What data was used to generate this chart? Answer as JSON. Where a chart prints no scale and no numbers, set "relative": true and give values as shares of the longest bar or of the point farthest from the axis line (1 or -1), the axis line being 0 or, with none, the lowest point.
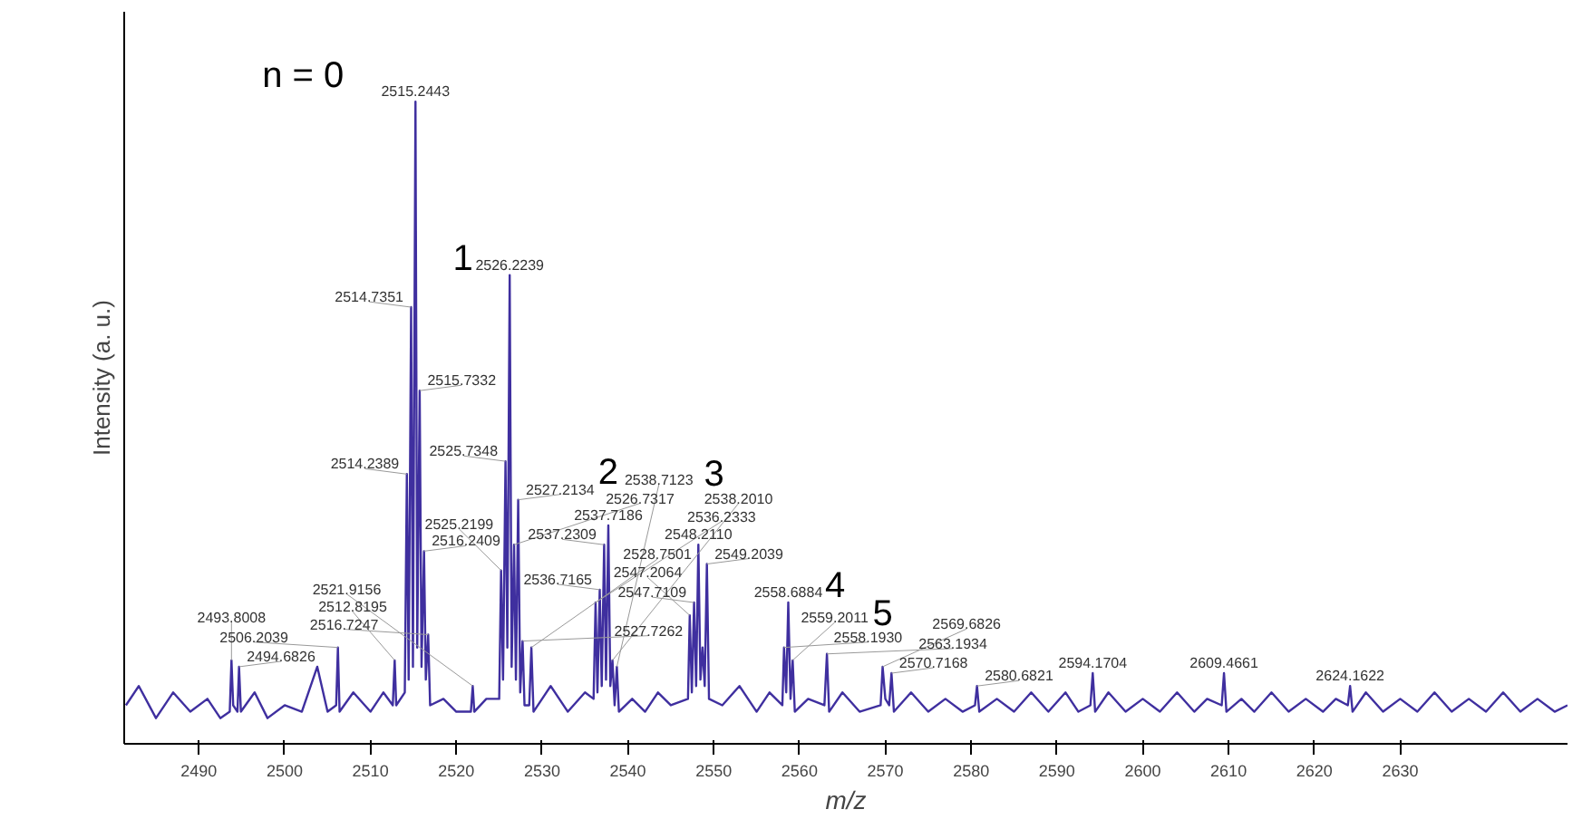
{
  "chart_data": {
    "type": "line",
    "xlabel": "m/z",
    "ylabel": "Intensity (a. u.)",
    "relative": true,
    "xlim": [
      2481.3,
      2649.5
    ],
    "xticks": [
      2490,
      2500,
      2510,
      2520,
      2530,
      2540,
      2550,
      2560,
      2570,
      2580,
      2590,
      2600,
      2610,
      2620,
      2630
    ],
    "x": [
      2481.5,
      2483,
      2485,
      2487,
      2489,
      2491,
      2492.5,
      2493.6,
      2493.8008,
      2494.0,
      2494.5,
      2494.6826,
      2494.9,
      2496.5,
      2498,
      2500,
      2502,
      2503.8,
      2505,
      2506.0,
      2506.2039,
      2506.4,
      2508,
      2510,
      2511.5,
      2512.6,
      2512.8195,
      2513.0,
      2514.0,
      2514.2389,
      2514.45,
      2514.7351,
      2514.95,
      2515.2443,
      2515.45,
      2515.7332,
      2515.95,
      2516.2409,
      2516.45,
      2516.7247,
      2516.95,
      2518.5,
      2520,
      2521.7,
      2521.9156,
      2522.1,
      2523.5,
      2525.0,
      2525.2199,
      2525.45,
      2525.7348,
      2525.95,
      2526.2239,
      2526.45,
      2526.7317,
      2526.95,
      2527.2134,
      2527.45,
      2527.7262,
      2527.95,
      2528.5,
      2528.7501,
      2529.0,
      2531,
      2533,
      2535,
      2536.0,
      2536.2333,
      2536.45,
      2536.7165,
      2536.95,
      2537.2309,
      2537.45,
      2537.7186,
      2537.95,
      2538.201,
      2538.45,
      2538.7123,
      2538.95,
      2540.5,
      2542,
      2543.5,
      2545,
      2547.0,
      2547.2064,
      2547.45,
      2547.7109,
      2547.95,
      2548.211,
      2548.45,
      2548.7,
      2548.95,
      2549.2039,
      2549.45,
      2551,
      2553,
      2555,
      2556.5,
      2558.0,
      2558.193,
      2558.45,
      2558.6884,
      2558.95,
      2559.2011,
      2559.45,
      2561,
      2562.9,
      2563.1934,
      2563.45,
      2565,
      2567,
      2569.45,
      2569.6826,
      2570,
      2570.45,
      2570.7168,
      2571,
      2573,
      2575,
      2577,
      2579,
      2580.45,
      2580.6821,
      2580.95,
      2583,
      2585,
      2587,
      2589,
      2591,
      2592.5,
      2593.9,
      2594.1704,
      2594.45,
      2596,
      2598,
      2600,
      2602,
      2604,
      2606,
      2607.5,
      2609.2,
      2609.4661,
      2609.75,
      2611.5,
      2613,
      2615,
      2617,
      2619,
      2621,
      2622.5,
      2623.9,
      2624.1622,
      2624.45,
      2626,
      2628,
      2630,
      2632,
      2634,
      2636,
      2638,
      2640,
      2642,
      2644,
      2646,
      2648,
      2649.5
    ],
    "series": [
      {
        "color": "#3f2f9f",
        "values": [
          0.06,
          0.09,
          0.04,
          0.08,
          0.05,
          0.07,
          0.04,
          0.05,
          0.13,
          0.06,
          0.05,
          0.12,
          0.05,
          0.08,
          0.04,
          0.06,
          0.05,
          0.12,
          0.05,
          0.06,
          0.15,
          0.05,
          0.08,
          0.05,
          0.08,
          0.06,
          0.13,
          0.06,
          0.08,
          0.42,
          0.1,
          0.68,
          0.12,
          1,
          0.15,
          0.55,
          0.12,
          0.3,
          0.1,
          0.17,
          0.06,
          0.07,
          0.05,
          0.05,
          0.09,
          0.05,
          0.07,
          0.07,
          0.27,
          0.1,
          0.44,
          0.15,
          0.73,
          0.12,
          0.31,
          0.1,
          0.38,
          0.08,
          0.16,
          0.06,
          0.06,
          0.15,
          0.05,
          0.09,
          0.05,
          0.08,
          0.07,
          0.22,
          0.08,
          0.24,
          0.09,
          0.31,
          0.1,
          0.34,
          0.09,
          0.13,
          0.06,
          0.12,
          0.05,
          0.07,
          0.05,
          0.08,
          0.06,
          0.07,
          0.2,
          0.08,
          0.22,
          0.09,
          0.31,
          0.1,
          0.15,
          0.09,
          0.28,
          0.07,
          0.06,
          0.09,
          0.05,
          0.08,
          0.06,
          0.15,
          0.08,
          0.22,
          0.07,
          0.13,
          0.05,
          0.07,
          0.06,
          0.14,
          0.05,
          0.08,
          0.05,
          0.06,
          0.12,
          0.07,
          0.06,
          0.11,
          0.05,
          0.08,
          0.05,
          0.07,
          0.05,
          0.06,
          0.09,
          0.05,
          0.07,
          0.05,
          0.08,
          0.05,
          0.08,
          0.05,
          0.06,
          0.11,
          0.05,
          0.08,
          0.05,
          0.07,
          0.05,
          0.08,
          0.05,
          0.07,
          0.06,
          0.11,
          0.05,
          0.07,
          0.05,
          0.08,
          0.05,
          0.07,
          0.05,
          0.07,
          0.06,
          0.09,
          0.05,
          0.08,
          0.05,
          0.07,
          0.05,
          0.08,
          0.05,
          0.07,
          0.05,
          0.08,
          0.05,
          0.07,
          0.05,
          0.06
        ]
      }
    ],
    "annotations": [
      {
        "text": "2515.2443",
        "x": 2515.2443,
        "y": 1
      },
      {
        "text": "2526.2239",
        "x": 2526.2239,
        "y": 0.73
      },
      {
        "text": "2514.7351",
        "x": 2514.7351,
        "y": 0.68
      },
      {
        "text": "2515.7332",
        "x": 2515.7332,
        "y": 0.55
      },
      {
        "text": "2525.7348",
        "x": 2525.7348,
        "y": 0.44
      },
      {
        "text": "2514.2389",
        "x": 2514.2389,
        "y": 0.42
      },
      {
        "text": "2527.2134",
        "x": 2527.2134,
        "y": 0.38
      },
      {
        "text": "2537.7186",
        "x": 2537.7186,
        "y": 0.34
      },
      {
        "text": "2526.7317",
        "x": 2526.7317,
        "y": 0.31
      },
      {
        "text": "2537.2309",
        "x": 2537.2309,
        "y": 0.31
      },
      {
        "text": "2548.2110",
        "x": 2548.211,
        "y": 0.31
      },
      {
        "text": "2516.2409",
        "x": 2516.2409,
        "y": 0.3
      },
      {
        "text": "2549.2039",
        "x": 2549.2039,
        "y": 0.28
      },
      {
        "text": "2525.2199",
        "x": 2525.2199,
        "y": 0.27
      },
      {
        "text": "2536.7165",
        "x": 2536.7165,
        "y": 0.24
      },
      {
        "text": "2536.2333",
        "x": 2536.2333,
        "y": 0.22
      },
      {
        "text": "2547.7109",
        "x": 2547.7109,
        "y": 0.22
      },
      {
        "text": "2558.6884",
        "x": 2558.6884,
        "y": 0.22
      },
      {
        "text": "2547.2064",
        "x": 2547.2064,
        "y": 0.2
      },
      {
        "text": "2516.7247",
        "x": 2516.7247,
        "y": 0.17
      },
      {
        "text": "2527.7262",
        "x": 2527.7262,
        "y": 0.16
      },
      {
        "text": "2506.2039",
        "x": 2506.2039,
        "y": 0.15
      },
      {
        "text": "2528.7501",
        "x": 2528.7501,
        "y": 0.15
      },
      {
        "text": "2558.1930",
        "x": 2558.193,
        "y": 0.15
      },
      {
        "text": "2563.1934",
        "x": 2563.1934,
        "y": 0.14
      },
      {
        "text": "2493.8008",
        "x": 2493.8008,
        "y": 0.13
      },
      {
        "text": "2512.8195",
        "x": 2512.8195,
        "y": 0.13
      },
      {
        "text": "2538.2010",
        "x": 2538.201,
        "y": 0.13
      },
      {
        "text": "2559.2011",
        "x": 2559.2011,
        "y": 0.13
      },
      {
        "text": "2494.6826",
        "x": 2494.6826,
        "y": 0.12
      },
      {
        "text": "2538.7123",
        "x": 2538.7123,
        "y": 0.12
      },
      {
        "text": "2569.6826",
        "x": 2569.6826,
        "y": 0.12
      },
      {
        "text": "2570.7168",
        "x": 2570.7168,
        "y": 0.11
      },
      {
        "text": "2594.1704",
        "x": 2594.1704,
        "y": 0.11
      },
      {
        "text": "2609.4661",
        "x": 2609.4661,
        "y": 0.11
      },
      {
        "text": "2521.9156",
        "x": 2521.9156,
        "y": 0.09
      },
      {
        "text": "2580.6821",
        "x": 2580.6821,
        "y": 0.09
      },
      {
        "text": "2624.1622",
        "x": 2624.1622,
        "y": 0.09
      },
      {
        "text": "n = 0",
        "x": 2515.2443,
        "y": 1
      },
      {
        "text": "1",
        "x": 2526.2239,
        "y": 0.73
      },
      {
        "text": "2",
        "x": 2537.7186,
        "y": 0.34
      },
      {
        "text": "3",
        "x": 2548.211,
        "y": 0.31
      },
      {
        "text": "4",
        "x": 2558.6884,
        "y": 0.22
      },
      {
        "text": "5",
        "x": 2569.6826,
        "y": 0.12
      }
    ]
  }
}
